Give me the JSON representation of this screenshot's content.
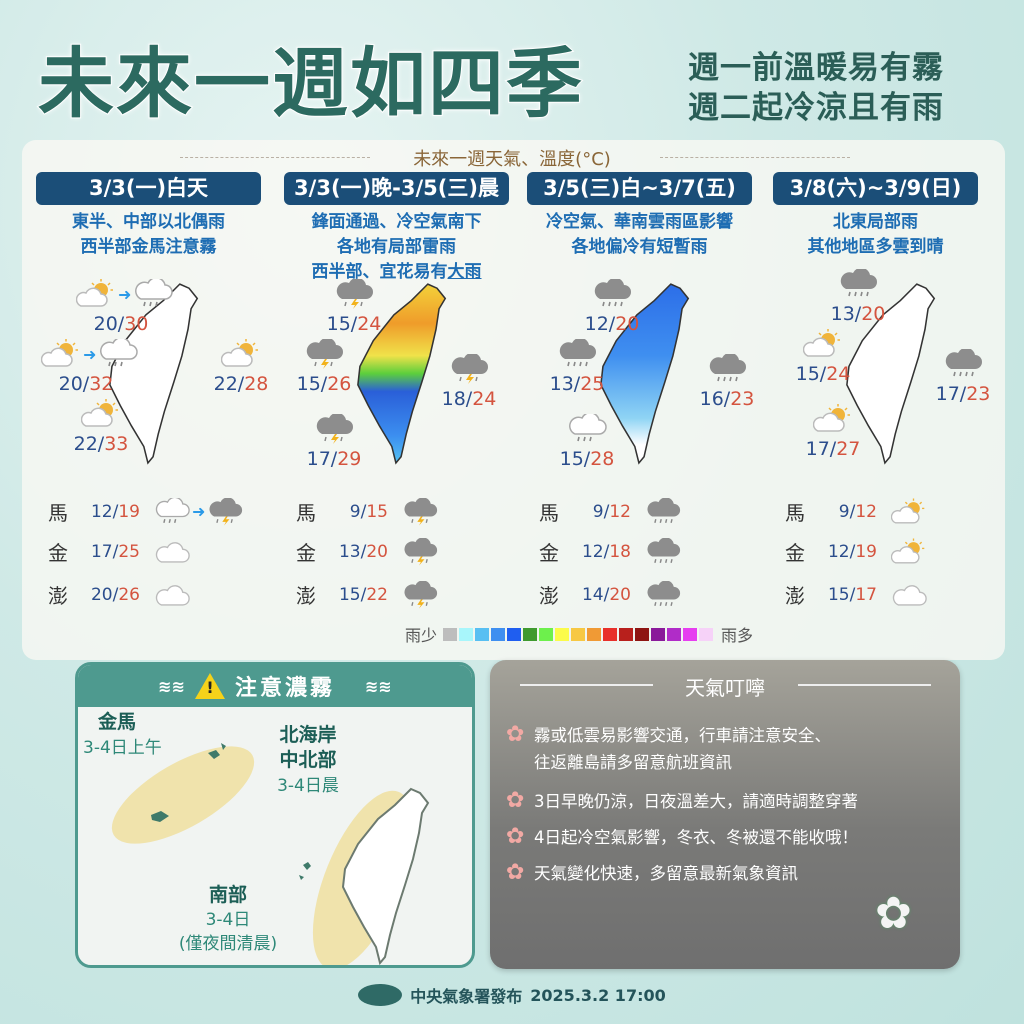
{
  "title": "未來一週如四季",
  "subtitle": [
    "週一前溫暖易有霧",
    "週二起冷涼且有雨"
  ],
  "panel_heading": "未來一週天氣、溫度(°C)",
  "columns": [
    {
      "period": "3/3(一)白天",
      "desc": [
        "東半、中部以北偶雨",
        "西半部金馬注意霧"
      ],
      "temps": [
        {
          "lo": "20",
          "hi": "30",
          "icon": "sun-cloud-to-rain-icon"
        },
        {
          "lo": "20",
          "hi": "32",
          "icon": "sun-cloud-to-rain-icon"
        },
        {
          "lo": "22",
          "hi": "28",
          "icon": "sun-cloud-rain-icon"
        },
        {
          "lo": "22",
          "hi": "33",
          "icon": "sun-cloud-icon"
        }
      ],
      "islands": [
        {
          "name": "馬",
          "lo": "12",
          "hi": "19",
          "icon": "rain-to-thunder-icon"
        },
        {
          "name": "金",
          "lo": "17",
          "hi": "25",
          "icon": "cloud-icon"
        },
        {
          "name": "澎",
          "lo": "20",
          "hi": "26",
          "icon": "cloud-icon"
        }
      ]
    },
    {
      "period": "3/3(一)晚-3/5(三)晨",
      "desc": [
        "鋒面通過、冷空氣南下",
        "各地有局部雷雨",
        "西半部、宜花易有",
        "大雨"
      ],
      "temps": [
        {
          "lo": "15",
          "hi": "24",
          "icon": "thunderstorm-icon"
        },
        {
          "lo": "15",
          "hi": "26",
          "icon": "thunderstorm-icon"
        },
        {
          "lo": "18",
          "hi": "24",
          "icon": "thunderstorm-icon"
        },
        {
          "lo": "17",
          "hi": "29",
          "icon": "thunderstorm-icon"
        }
      ],
      "islands": [
        {
          "name": "馬",
          "lo": "9",
          "hi": "15",
          "icon": "thunderstorm-icon"
        },
        {
          "name": "金",
          "lo": "13",
          "hi": "20",
          "icon": "thunderstorm-icon"
        },
        {
          "name": "澎",
          "lo": "15",
          "hi": "22",
          "icon": "thunderstorm-icon"
        }
      ]
    },
    {
      "period": "3/5(三)白~3/7(五)",
      "desc": [
        "冷空氣、華南雲雨區影響",
        "各地偏冷有短暫雨"
      ],
      "temps": [
        {
          "lo": "12",
          "hi": "20",
          "icon": "rain-icon"
        },
        {
          "lo": "13",
          "hi": "25",
          "icon": "rain-icon"
        },
        {
          "lo": "16",
          "hi": "23",
          "icon": "rain-icon"
        },
        {
          "lo": "15",
          "hi": "28",
          "icon": "light-rain-icon"
        }
      ],
      "islands": [
        {
          "name": "馬",
          "lo": "9",
          "hi": "12",
          "icon": "rain-icon"
        },
        {
          "name": "金",
          "lo": "12",
          "hi": "18",
          "icon": "rain-icon"
        },
        {
          "name": "澎",
          "lo": "14",
          "hi": "20",
          "icon": "rain-icon"
        }
      ]
    },
    {
      "period": "3/8(六)~3/9(日)",
      "desc": [
        "北東局部雨",
        "其他地區多雲到晴"
      ],
      "temps": [
        {
          "lo": "13",
          "hi": "20",
          "icon": "rain-icon"
        },
        {
          "lo": "15",
          "hi": "24",
          "icon": "sun-cloud-icon"
        },
        {
          "lo": "17",
          "hi": "23",
          "icon": "rain-icon"
        },
        {
          "lo": "17",
          "hi": "27",
          "icon": "sun-cloud-icon"
        }
      ],
      "islands": [
        {
          "name": "馬",
          "lo": "9",
          "hi": "12",
          "icon": "sun-cloud-icon"
        },
        {
          "name": "金",
          "lo": "12",
          "hi": "19",
          "icon": "sun-cloud-icon"
        },
        {
          "name": "澎",
          "lo": "15",
          "hi": "17",
          "icon": "cloud-icon"
        }
      ]
    }
  ],
  "legend": {
    "less": "雨少",
    "more": "雨多",
    "colors": [
      "#bdbdbd",
      "#a8f6fb",
      "#58bff2",
      "#3f8ff0",
      "#1f5ef0",
      "#3f9a2f",
      "#6df04c",
      "#fbfb4a",
      "#f7c843",
      "#f09a35",
      "#e8302a",
      "#b8201c",
      "#8e1512",
      "#8a1a9a",
      "#b02cc8",
      "#e63ef0",
      "#f6d2f8"
    ]
  },
  "fog": {
    "title": "注意濃霧",
    "regions": [
      {
        "name": [
          "金馬"
        ],
        "time": [
          "3-4日上午"
        ]
      },
      {
        "name": [
          "北海岸",
          "中北部"
        ],
        "time": [
          "3-4日晨"
        ]
      },
      {
        "name": [
          "南部"
        ],
        "time": [
          "3-4日",
          "(僅夜間清晨)"
        ]
      }
    ]
  },
  "tips": {
    "title": "天氣叮嚀",
    "items": [
      [
        "霧或低雲易影響交通，行車請注意安全、",
        "往返離島請多留意航班資訊"
      ],
      [
        "3日早晚仍涼，日夜溫差大，請適時調整穿著"
      ],
      [
        "4日起冷空氣影響，冬衣、冬被還不能收哦！"
      ],
      [
        "天氣變化快速，多留意最新氣象資訊"
      ]
    ]
  },
  "footer": {
    "publisher": "中央氣象署發布",
    "datetime": "2025.3.2 17:00"
  }
}
